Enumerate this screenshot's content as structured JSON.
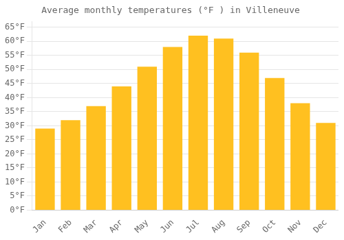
{
  "chart_data": {
    "type": "bar",
    "title": "Average monthly temperatures (°F ) in Villeneuve",
    "categories": [
      "Jan",
      "Feb",
      "Mar",
      "Apr",
      "May",
      "Jun",
      "Jul",
      "Aug",
      "Sep",
      "Oct",
      "Nov",
      "Dec"
    ],
    "values": [
      29,
      32,
      37,
      44,
      51,
      58,
      62,
      61,
      56,
      47,
      38,
      31
    ],
    "color": "#FFC020",
    "ylim": [
      0,
      67
    ],
    "yticks": [
      {
        "value": 0,
        "label": "0°F"
      },
      {
        "value": 5,
        "label": "5°F"
      },
      {
        "value": 10,
        "label": "10°F"
      },
      {
        "value": 15,
        "label": "15°F"
      },
      {
        "value": 20,
        "label": "20°F"
      },
      {
        "value": 25,
        "label": "25°F"
      },
      {
        "value": 30,
        "label": "30°F"
      },
      {
        "value": 35,
        "label": "35°F"
      },
      {
        "value": 40,
        "label": "40°F"
      },
      {
        "value": 45,
        "label": "45°F"
      },
      {
        "value": 50,
        "label": "50°F"
      },
      {
        "value": 55,
        "label": "55°F"
      },
      {
        "value": 60,
        "label": "60°F"
      },
      {
        "value": 65,
        "label": "65°F"
      }
    ],
    "grid": true
  }
}
